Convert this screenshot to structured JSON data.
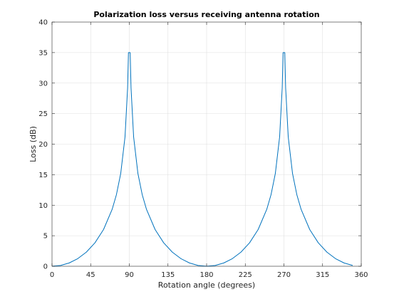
{
  "chart_data": {
    "type": "line",
    "title": "Polarization loss versus receiving antenna rotation",
    "xlabel": "Rotation angle (degrees)",
    "ylabel": "Loss (dB)",
    "xlim": [
      0,
      360
    ],
    "ylim": [
      0,
      40
    ],
    "xticks": [
      0,
      45,
      90,
      135,
      180,
      225,
      270,
      315,
      360
    ],
    "yticks": [
      0,
      5,
      10,
      15,
      20,
      25,
      30,
      35,
      40
    ],
    "grid": true,
    "line_color": "#0072bd",
    "series": [
      {
        "formula": "loss = -20*log10(|cos(angle)|), clipped at 35 dB",
        "x": [
          0,
          10,
          20,
          30,
          40,
          50,
          60,
          70,
          75,
          80,
          85,
          88,
          89,
          90,
          91,
          92,
          95,
          100,
          105,
          110,
          120,
          130,
          140,
          150,
          160,
          170,
          180,
          190,
          200,
          210,
          220,
          230,
          240,
          250,
          255,
          260,
          265,
          268,
          269,
          270,
          271,
          272,
          275,
          280,
          285,
          290,
          300,
          310,
          320,
          330,
          340,
          350
        ],
        "y": [
          0,
          0.13,
          0.54,
          1.25,
          2.32,
          3.84,
          6.02,
          9.32,
          11.74,
          15.2,
          21.2,
          29.2,
          35,
          35,
          35,
          29.2,
          21.2,
          15.2,
          11.74,
          9.32,
          6.02,
          3.84,
          2.32,
          1.25,
          0.54,
          0.13,
          0,
          0.13,
          0.54,
          1.25,
          2.32,
          3.84,
          6.02,
          9.32,
          11.74,
          15.2,
          21.2,
          29.2,
          35,
          35,
          35,
          29.2,
          21.2,
          15.2,
          11.74,
          9.32,
          6.02,
          3.84,
          2.32,
          1.25,
          0.54,
          0.13
        ]
      }
    ]
  }
}
